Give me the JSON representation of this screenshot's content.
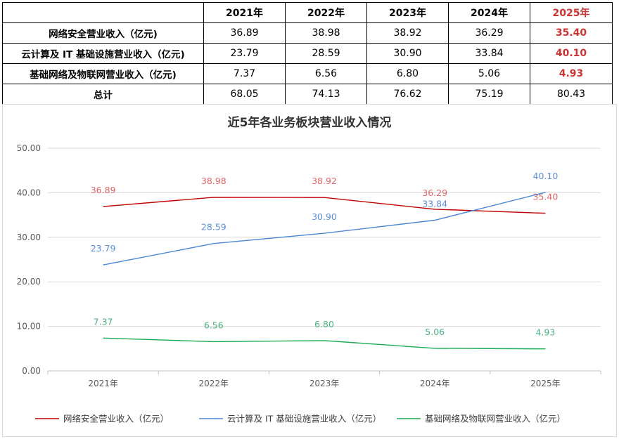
{
  "table": {
    "header": [
      "",
      "2021年",
      "2022年",
      "2023年",
      "2024年",
      "2025年"
    ],
    "rows": [
      {
        "label": "网络安全营业收入（亿元)",
        "values": [
          "36.89",
          "38.98",
          "38.92",
          "36.29",
          "35.40"
        ]
      },
      {
        "label": "云计算及 IT 基础设施营业收入（亿元)",
        "values": [
          "23.79",
          "28.59",
          "30.90",
          "33.84",
          "40.10"
        ]
      },
      {
        "label": "基础网络及物联网营业收入（亿元)",
        "values": [
          "7.37",
          "6.56",
          "6.80",
          "5.06",
          "4.93"
        ]
      },
      {
        "label": "总计",
        "values": [
          "68.05",
          "74.13",
          "76.62",
          "75.19",
          "80.43"
        ]
      }
    ]
  },
  "colors": {
    "highlight": "#cc3333",
    "series": [
      "#c00000",
      "#4a86d4",
      "#1aaa55"
    ],
    "labels": [
      "#e06666",
      "#5b8fd6",
      "#4caf7d"
    ]
  },
  "chart_data": {
    "type": "line",
    "title": "近5年各业务板块营业收入情况",
    "categories": [
      "2021年",
      "2022年",
      "2023年",
      "2024年",
      "2025年"
    ],
    "ylim": [
      0,
      50
    ],
    "yticks": [
      "0.00",
      "10.00",
      "20.00",
      "30.00",
      "40.00",
      "50.00"
    ],
    "grid": true,
    "legend_position": "bottom",
    "series": [
      {
        "name": "网络安全营业收入（亿元）",
        "values": [
          36.89,
          38.98,
          38.92,
          36.29,
          35.4
        ],
        "labels": [
          "36.89",
          "38.98",
          "38.92",
          "36.29",
          "35.40"
        ]
      },
      {
        "name": "云计算及 IT 基础设施营业收入（亿元）",
        "values": [
          23.79,
          28.59,
          30.9,
          33.84,
          40.1
        ],
        "labels": [
          "23.79",
          "28.59",
          "30.90",
          "33.84",
          "40.10"
        ]
      },
      {
        "name": "基础网络及物联网营业收入（亿元）",
        "values": [
          7.37,
          6.56,
          6.8,
          5.06,
          4.93
        ],
        "labels": [
          "7.37",
          "6.56",
          "6.80",
          "5.06",
          "4.93"
        ]
      }
    ]
  }
}
